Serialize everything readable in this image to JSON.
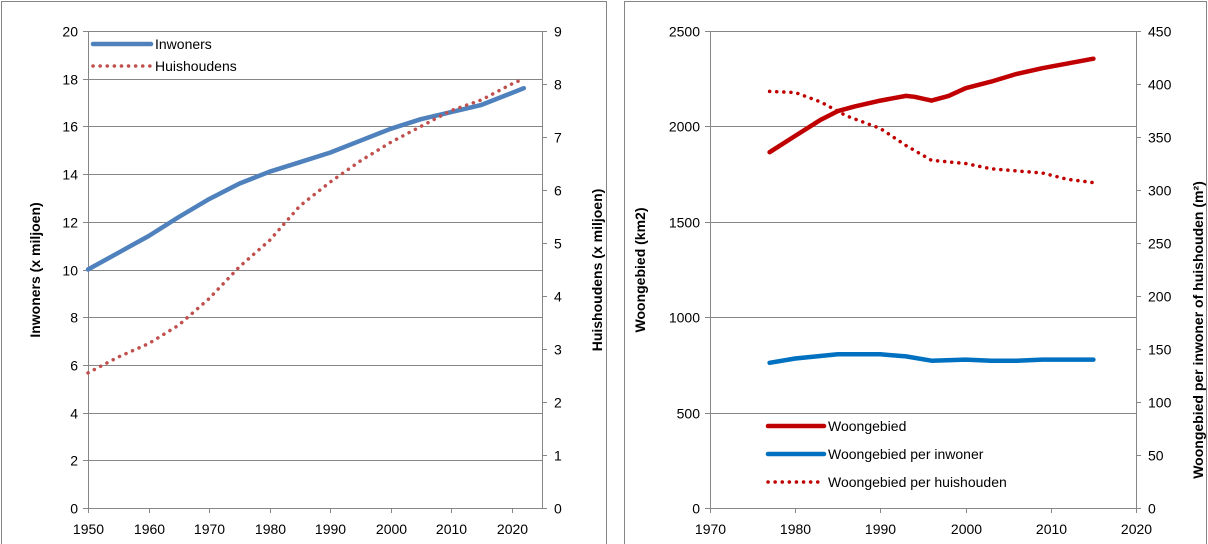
{
  "chart_data": [
    {
      "type": "line",
      "xlim": [
        1950,
        2025
      ],
      "xticks": [
        1950,
        1960,
        1970,
        1980,
        1990,
        2000,
        2010,
        2020
      ],
      "ylabel": "Inwoners (x miljoen)",
      "ylim": [
        0,
        20
      ],
      "yticks": [
        0,
        2,
        4,
        6,
        8,
        10,
        12,
        14,
        16,
        18,
        20
      ],
      "y2label": "Huishoudens (x miljoen)",
      "y2lim": [
        0,
        9
      ],
      "y2ticks": [
        0,
        1,
        2,
        3,
        4,
        5,
        6,
        7,
        8,
        9
      ],
      "grid": true,
      "legend_position": "top-left",
      "series": [
        {
          "name": "Inwoners",
          "axis": "left",
          "style": "solid",
          "color": "#4F81BD",
          "x": [
            1950,
            1955,
            1960,
            1965,
            1970,
            1975,
            1980,
            1985,
            1990,
            1995,
            2000,
            2005,
            2010,
            2015,
            2020,
            2022
          ],
          "y": [
            10.0,
            10.7,
            11.4,
            12.2,
            12.95,
            13.6,
            14.1,
            14.5,
            14.9,
            15.4,
            15.9,
            16.3,
            16.6,
            16.9,
            17.4,
            17.6
          ]
        },
        {
          "name": "Huishoudens",
          "axis": "right",
          "style": "dotted",
          "color": "#C0504D",
          "x": [
            1950,
            1955,
            1960,
            1965,
            1970,
            1975,
            1980,
            1985,
            1990,
            1995,
            2000,
            2005,
            2010,
            2015,
            2020,
            2022
          ],
          "y": [
            2.55,
            2.85,
            3.1,
            3.45,
            3.95,
            4.55,
            5.05,
            5.7,
            6.15,
            6.55,
            6.9,
            7.2,
            7.5,
            7.7,
            8.0,
            8.1
          ]
        }
      ]
    },
    {
      "type": "line",
      "xlim": [
        1970,
        2020
      ],
      "xticks": [
        1970,
        1980,
        1990,
        2000,
        2010,
        2020
      ],
      "ylabel": "Woongebied (km2)",
      "ylim": [
        0,
        2500
      ],
      "yticks": [
        0,
        500,
        1000,
        1500,
        2000,
        2500
      ],
      "y2label": "Woongebied per inwoner of huishouden (m²)",
      "y2lim": [
        0,
        450
      ],
      "y2ticks": [
        0,
        50,
        100,
        150,
        200,
        250,
        300,
        350,
        400,
        450
      ],
      "grid": true,
      "legend_position": "bottom-left",
      "series": [
        {
          "name": "Woongebied",
          "axis": "left",
          "style": "solid",
          "color": "#C00000",
          "x": [
            1977,
            1980,
            1983,
            1985,
            1987,
            1990,
            1993,
            1994,
            1996,
            1998,
            2000,
            2003,
            2006,
            2009,
            2012,
            2015
          ],
          "y": [
            1865,
            1950,
            2035,
            2080,
            2105,
            2135,
            2160,
            2155,
            2135,
            2160,
            2200,
            2235,
            2275,
            2305,
            2330,
            2355
          ]
        },
        {
          "name": "Woongebied per inwoner",
          "axis": "right",
          "style": "solid",
          "color": "#0070C0",
          "x": [
            1977,
            1980,
            1985,
            1990,
            1993,
            1996,
            2000,
            2003,
            2006,
            2009,
            2012,
            2015
          ],
          "y": [
            137,
            141,
            145,
            145,
            143,
            139,
            140,
            139,
            139,
            140,
            140,
            140
          ]
        },
        {
          "name": "Woongebied per huishouden",
          "axis": "right",
          "style": "dotted",
          "color": "#C00000",
          "x": [
            1977,
            1980,
            1983,
            1986,
            1990,
            1993,
            1996,
            2000,
            2003,
            2006,
            2009,
            2012,
            2015
          ],
          "y": [
            393,
            392,
            383,
            370,
            358,
            342,
            328,
            325,
            320,
            318,
            316,
            310,
            307
          ]
        }
      ]
    }
  ]
}
